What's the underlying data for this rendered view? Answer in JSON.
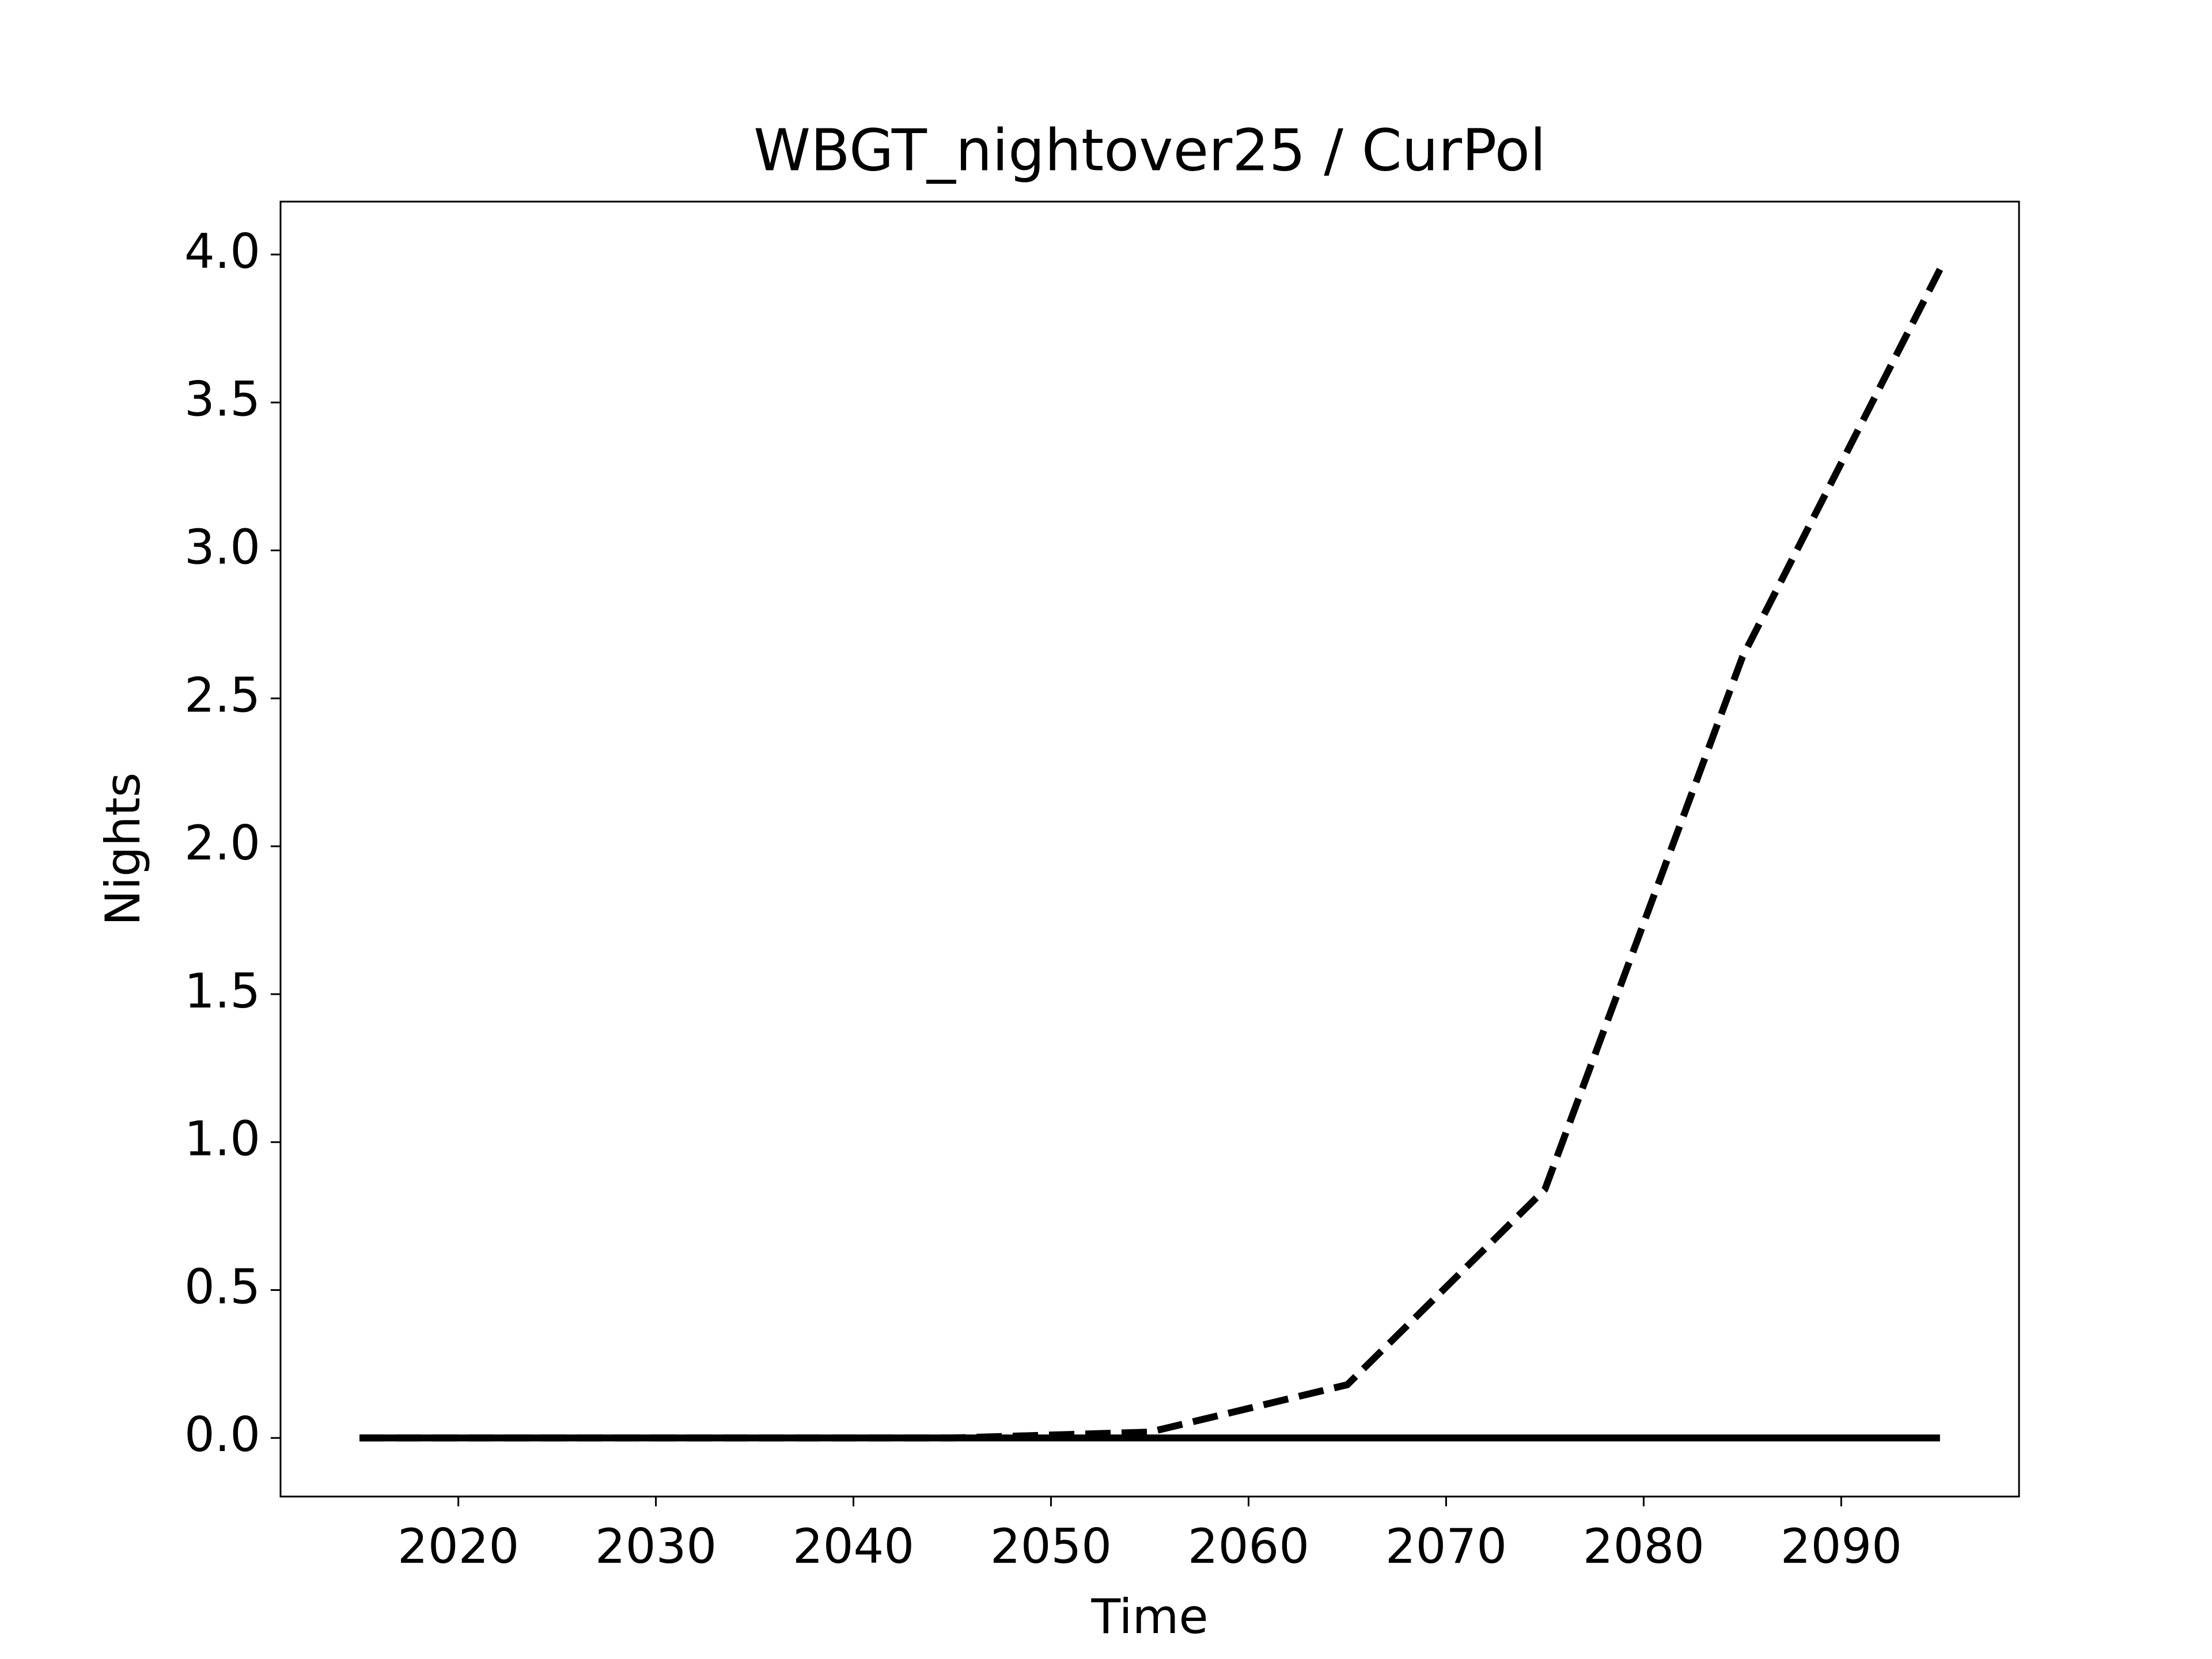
{
  "chart_data": {
    "type": "line",
    "title": "WBGT_nightover25 / CurPol",
    "x_label": "Time",
    "y_label": "Nights",
    "x": [
      2015,
      2025,
      2035,
      2045,
      2055,
      2065,
      2075,
      2085,
      2095
    ],
    "series": [
      {
        "color": "#000000",
        "linestyle": "dashed",
        "values": [
          0,
          0,
          0,
          0,
          0.02,
          0.18,
          0.84,
          2.64,
          3.95
        ]
      },
      {
        "color": "#000000",
        "linestyle": "solid",
        "values": [
          0,
          0,
          0,
          0,
          0,
          0,
          0,
          0,
          0
        ]
      }
    ],
    "xlim": [
      2011,
      2099
    ],
    "xticks": [
      2020,
      2030,
      2040,
      2050,
      2060,
      2070,
      2080,
      2090
    ],
    "ylim": [
      -0.198,
      4.179
    ],
    "yticks": [
      {
        "value": 0,
        "label": "0.0"
      },
      {
        "value": 0.5,
        "label": "0.5"
      },
      {
        "value": 1,
        "label": "1.0"
      },
      {
        "value": 1.5,
        "label": "1.5"
      },
      {
        "value": 2,
        "label": "2.0"
      },
      {
        "value": 2.5,
        "label": "2.5"
      },
      {
        "value": 3,
        "label": "3.0"
      },
      {
        "value": 3.5,
        "label": "3.5"
      },
      {
        "value": 4,
        "label": "4.0"
      }
    ],
    "grid": false
  }
}
